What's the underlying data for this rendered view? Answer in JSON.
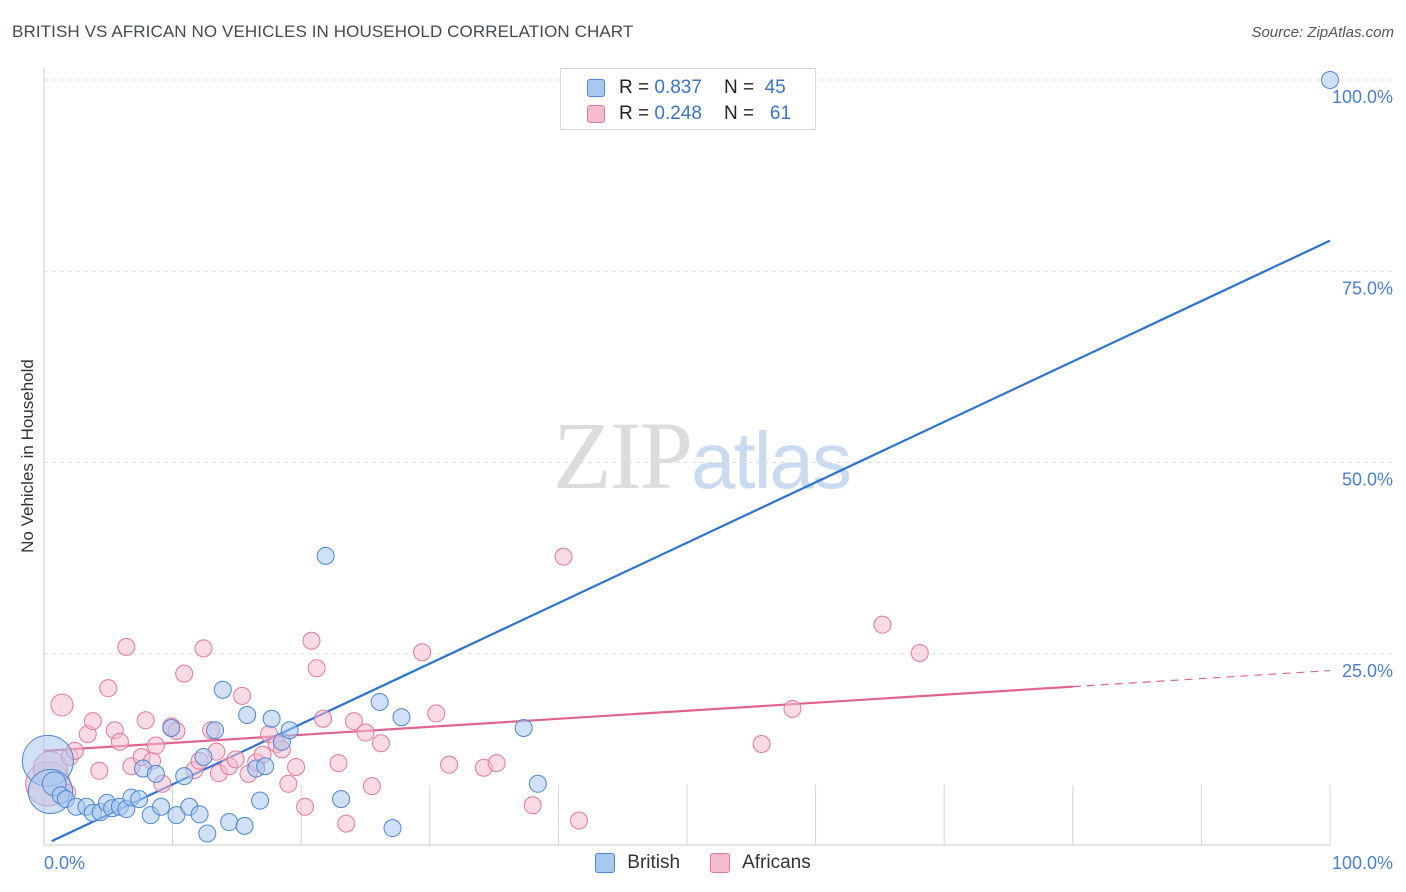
{
  "header": {
    "title": "BRITISH VS AFRICAN NO VEHICLES IN HOUSEHOLD CORRELATION CHART",
    "source": "Source: ZipAtlas.com"
  },
  "watermark": {
    "part1": "ZIP",
    "part2": "atlas"
  },
  "legend": {
    "rows": [
      {
        "r_label": "R =",
        "r_value": "0.837",
        "n_label": "N =",
        "n_value": "45",
        "color": "#a9c8f0"
      },
      {
        "r_label": "R =",
        "r_value": "0.248",
        "n_label": "N =",
        "n_value": "61",
        "color": "#f6bccd"
      }
    ]
  },
  "bottom_legend": {
    "british": "British",
    "africans": "Africans"
  },
  "colors": {
    "british_fill": "#a9c8f0",
    "british_stroke": "#4f86d6",
    "british_line": "#2f72d0",
    "african_fill": "#f6bccd",
    "african_stroke": "#e47a9c",
    "african_line": "#e0648f",
    "tick": "#4a7fd0",
    "grid": "#dddddd"
  },
  "chart_data": {
    "type": "scatter",
    "title": "BRITISH VS AFRICAN NO VEHICLES IN HOUSEHOLD CORRELATION CHART",
    "xlabel": "",
    "ylabel": "No Vehicles in Household",
    "xlim": [
      0,
      100
    ],
    "ylim": [
      0,
      100
    ],
    "x_tick_labels": [
      "0.0%",
      "100.0%"
    ],
    "y_ticks": [
      25,
      50,
      75,
      100
    ],
    "y_tick_labels": [
      "25.0%",
      "50.0%",
      "75.0%",
      "100.0%"
    ],
    "grid": true,
    "series": [
      {
        "name": "British",
        "r": 0.837,
        "n": 45,
        "trend": {
          "x0": 0.6,
          "y0": 0.5,
          "x1": 100,
          "y1": 79
        },
        "points": [
          [
            0.3,
            11,
            3
          ],
          [
            0.5,
            7,
            2.6
          ],
          [
            0.8,
            8,
            1.4
          ],
          [
            1.3,
            6.5,
            1
          ],
          [
            1.7,
            6,
            1
          ],
          [
            2.5,
            5,
            1
          ],
          [
            3.3,
            5,
            1
          ],
          [
            3.8,
            4.2,
            1
          ],
          [
            4.4,
            4.3,
            1
          ],
          [
            4.9,
            5.5,
            1
          ],
          [
            5.3,
            4.8,
            1
          ],
          [
            5.9,
            5,
            1
          ],
          [
            6.4,
            4.7,
            1
          ],
          [
            6.8,
            6.2,
            1
          ],
          [
            7.4,
            6,
            1
          ],
          [
            7.7,
            10,
            1
          ],
          [
            8.3,
            3.9,
            1
          ],
          [
            8.7,
            9.3,
            1
          ],
          [
            9.1,
            5,
            1
          ],
          [
            9.9,
            15.3,
            1
          ],
          [
            10.3,
            3.9,
            1
          ],
          [
            10.9,
            9,
            1
          ],
          [
            11.3,
            5,
            1
          ],
          [
            12.1,
            4,
            1
          ],
          [
            12.4,
            11.5,
            1
          ],
          [
            12.7,
            1.5,
            1
          ],
          [
            13.3,
            15,
            1
          ],
          [
            13.9,
            20.3,
            1
          ],
          [
            14.4,
            3,
            1
          ],
          [
            15.6,
            2.5,
            1
          ],
          [
            15.8,
            17,
            1
          ],
          [
            16.5,
            10,
            1
          ],
          [
            16.8,
            5.8,
            1
          ],
          [
            17.2,
            10.3,
            1
          ],
          [
            17.7,
            16.5,
            1
          ],
          [
            18.5,
            13.5,
            1
          ],
          [
            19.1,
            15,
            1
          ],
          [
            21.9,
            37.8,
            1
          ],
          [
            23.1,
            6,
            1
          ],
          [
            26.1,
            18.7,
            1
          ],
          [
            27.1,
            2.2,
            1
          ],
          [
            27.8,
            16.7,
            1
          ],
          [
            37.3,
            15.3,
            1
          ],
          [
            38.4,
            8,
            1
          ],
          [
            100,
            100,
            1
          ]
        ]
      },
      {
        "name": "Africans",
        "r": 0.248,
        "n": 61,
        "trend": {
          "x0": 0,
          "y0": 12.3,
          "x1": 80,
          "y1": 20.7
        },
        "trend_extension": {
          "x0": 80,
          "y0": 20.7,
          "x1": 100,
          "y1": 22.8
        },
        "points": [
          [
            0.3,
            8,
            2.6
          ],
          [
            0.5,
            10,
            2
          ],
          [
            1.4,
            18.3,
            1.3
          ],
          [
            2,
            11.5,
            1
          ],
          [
            2.4,
            12.3,
            1
          ],
          [
            3.4,
            14.5,
            1
          ],
          [
            3.8,
            16.2,
            1
          ],
          [
            4.3,
            9.7,
            1
          ],
          [
            5,
            20.5,
            1
          ],
          [
            5.5,
            15,
            1
          ],
          [
            5.9,
            13.5,
            1
          ],
          [
            6.4,
            25.9,
            1
          ],
          [
            6.8,
            10.3,
            1
          ],
          [
            7.6,
            11.5,
            1
          ],
          [
            7.9,
            16.3,
            1
          ],
          [
            8.4,
            11,
            1
          ],
          [
            8.7,
            13,
            1
          ],
          [
            9.2,
            8,
            1
          ],
          [
            9.9,
            15.5,
            1
          ],
          [
            10.3,
            14.9,
            1
          ],
          [
            10.9,
            22.4,
            1
          ],
          [
            11.7,
            9.8,
            1
          ],
          [
            12.1,
            11,
            1
          ],
          [
            12.4,
            25.7,
            1
          ],
          [
            13,
            15,
            1
          ],
          [
            13.4,
            12.2,
            1
          ],
          [
            13.6,
            9.4,
            1
          ],
          [
            14.4,
            10.3,
            1
          ],
          [
            14.9,
            11.2,
            1
          ],
          [
            15.4,
            19.5,
            1
          ],
          [
            15.9,
            9.3,
            1
          ],
          [
            16.5,
            10.8,
            1
          ],
          [
            17,
            11.8,
            1
          ],
          [
            17.5,
            14.5,
            1
          ],
          [
            18.1,
            13.2,
            1
          ],
          [
            18.5,
            12.5,
            1
          ],
          [
            19,
            8,
            1
          ],
          [
            19.6,
            10.2,
            1
          ],
          [
            20.3,
            5,
            1
          ],
          [
            20.8,
            26.7,
            1
          ],
          [
            21.2,
            23.1,
            1
          ],
          [
            21.7,
            16.5,
            1
          ],
          [
            22.9,
            10.7,
            1
          ],
          [
            23.5,
            2.8,
            1
          ],
          [
            24.1,
            16.2,
            1
          ],
          [
            25.5,
            7.7,
            1
          ],
          [
            25,
            14.7,
            1
          ],
          [
            26.2,
            13.3,
            1
          ],
          [
            29.4,
            25.2,
            1
          ],
          [
            30.5,
            17.2,
            1
          ],
          [
            31.5,
            10.5,
            1
          ],
          [
            34.2,
            10.1,
            1
          ],
          [
            35.2,
            10.7,
            1
          ],
          [
            38,
            5.2,
            1
          ],
          [
            40.4,
            37.7,
            1
          ],
          [
            41.6,
            3.2,
            1
          ],
          [
            55.8,
            13.2,
            1
          ],
          [
            58.2,
            17.8,
            1
          ],
          [
            65.2,
            28.8,
            1
          ],
          [
            68.1,
            25.1,
            1
          ],
          [
            1.8,
            6.8,
            1
          ]
        ]
      }
    ]
  }
}
